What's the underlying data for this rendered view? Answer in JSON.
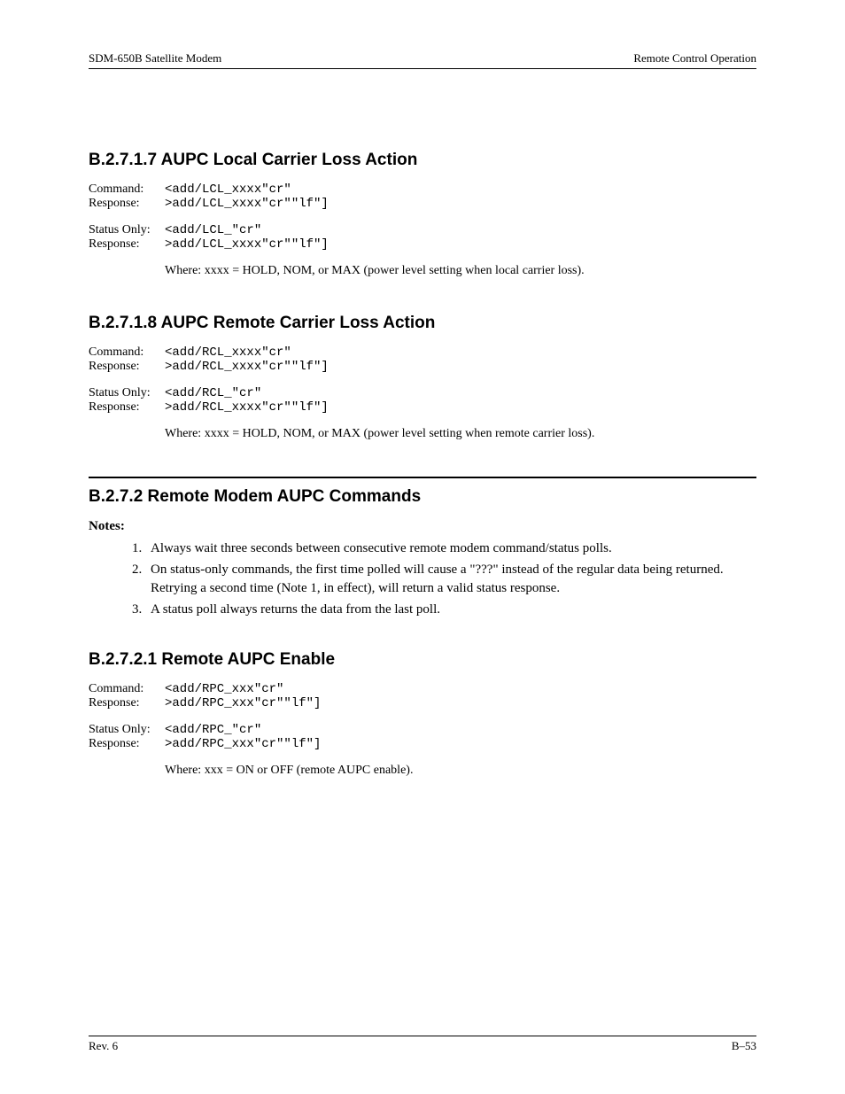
{
  "header": {
    "left": "SDM-650B Satellite Modem",
    "right": "Remote Control Operation"
  },
  "sections": {
    "s1": {
      "heading": "B.2.7.1.7  AUPC Local Carrier Loss Action",
      "cmd_label": "Command:",
      "cmd_val": "<add/LCL_xxxx\"cr\"",
      "resp_label": "Response:",
      "resp_val": ">add/LCL_xxxx\"cr\"\"lf\"]",
      "stat_label": "Status Only:",
      "stat_val": "<add/LCL_\"cr\"",
      "resp2_label": "Response:",
      "resp2_val": ">add/LCL_xxxx\"cr\"\"lf\"]",
      "where": "Where: xxxx = HOLD, NOM, or MAX (power level setting when local carrier loss)."
    },
    "s2": {
      "heading": "B.2.7.1.8  AUPC Remote Carrier Loss Action",
      "cmd_label": "Command:",
      "cmd_val": "<add/RCL_xxxx\"cr\"",
      "resp_label": "Response:",
      "resp_val": ">add/RCL_xxxx\"cr\"\"lf\"]",
      "stat_label": "Status Only:",
      "stat_val": "<add/RCL_\"cr\"",
      "resp2_label": "Response:",
      "resp2_val": ">add/RCL_xxxx\"cr\"\"lf\"]",
      "where": "Where: xxxx = HOLD, NOM, or MAX (power level setting when remote carrier loss)."
    },
    "s3": {
      "heading": "B.2.7.2  Remote Modem AUPC Commands",
      "notes_label": "Notes:",
      "notes": [
        "Always wait three seconds between consecutive remote modem command/status polls.",
        "On status-only commands, the first time polled will cause a \"???\" instead of the regular data being returned. Retrying a second time (Note 1, in effect), will return a valid status response.",
        "A status poll always returns the data from the last poll."
      ]
    },
    "s4": {
      "heading": "B.2.7.2.1  Remote AUPC Enable",
      "cmd_label": "Command:",
      "cmd_val": "<add/RPC_xxx\"cr\"",
      "resp_label": "Response:",
      "resp_val": ">add/RPC_xxx\"cr\"\"lf\"]",
      "stat_label": "Status Only:",
      "stat_val": "<add/RPC_\"cr\"",
      "resp2_label": "Response:",
      "resp2_val": ">add/RPC_xxx\"cr\"\"lf\"]",
      "where": "Where: xxx = ON or OFF (remote AUPC enable)."
    }
  },
  "footer": {
    "left": "Rev. 6",
    "right": "B–53"
  }
}
